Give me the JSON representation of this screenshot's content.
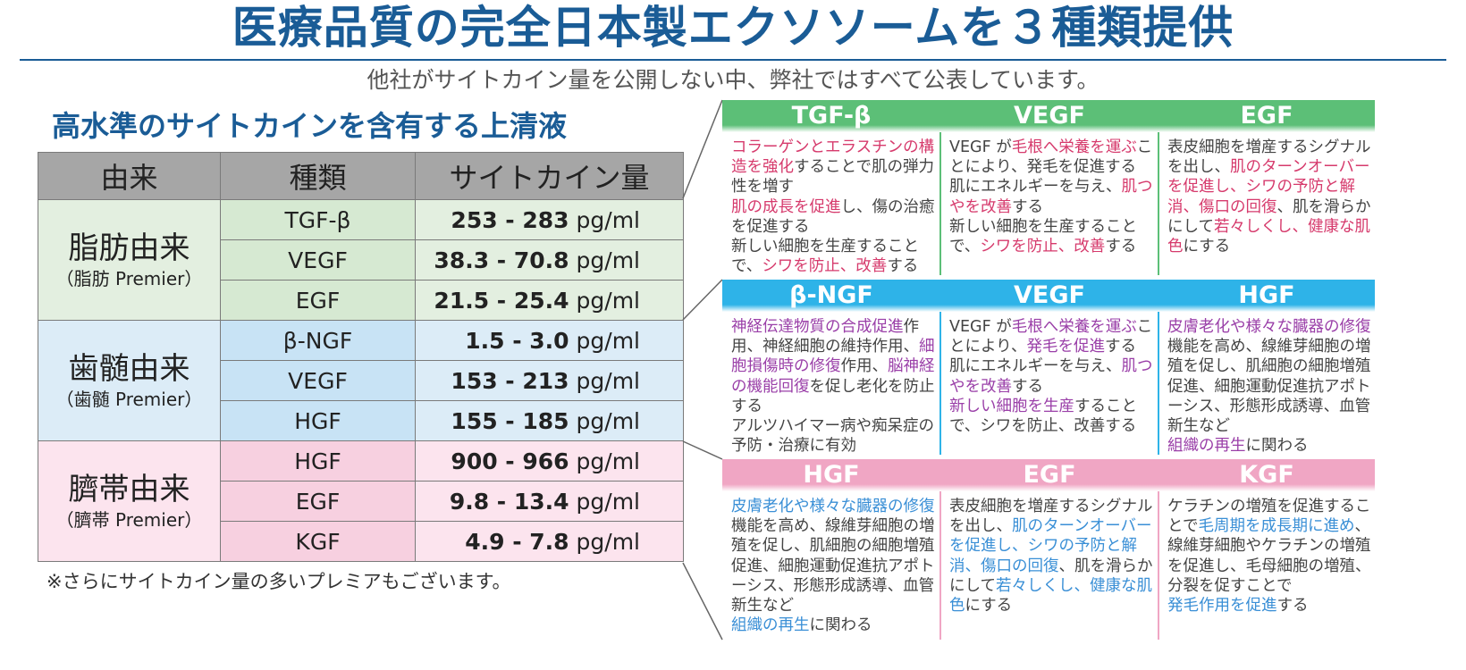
{
  "title": "医療品質の完全日本製エクソソームを３種類提供",
  "subtitle": "他社がサイトカイン量を公開しない中、弊社ではすべて公表しています。",
  "section_heading": "高水準のサイトカインを含有する上清液",
  "table": {
    "headers": [
      "由来",
      "種類",
      "サイトカイン量"
    ],
    "unit": "pg/ml",
    "groups": [
      {
        "name": "脂肪由来",
        "sub": "（脂肪 Premier）",
        "rows": [
          {
            "type": "TGF-β",
            "amount": "253 - 283"
          },
          {
            "type": "VEGF",
            "amount": "38.3 - 70.8"
          },
          {
            "type": "EGF",
            "amount": "21.5 - 25.4"
          }
        ]
      },
      {
        "name": "歯髄由来",
        "sub": "（歯髄 Premier）",
        "rows": [
          {
            "type": "β-NGF",
            "amount": "1.5 - 3.0"
          },
          {
            "type": "VEGF",
            "amount": "153 - 213"
          },
          {
            "type": "HGF",
            "amount": "155 - 185"
          }
        ]
      },
      {
        "name": "臍帯由来",
        "sub": "（臍帯 Premier）",
        "rows": [
          {
            "type": "HGF",
            "amount": "900 - 966"
          },
          {
            "type": "EGF",
            "amount": "9.8 - 13.4"
          },
          {
            "type": "KGF",
            "amount": "4.9 - 7.8"
          }
        ]
      }
    ]
  },
  "footnote": "※さらにサイトカイン量の多いプレミアもございます。",
  "colors": {
    "title_blue": "#1a5c96",
    "green_header": "#5cbf77",
    "blue_header": "#2eb3e8",
    "pink_header": "#f0a6c4",
    "red_highlight": "#d63a6c",
    "purple_highlight": "#9a3fa8",
    "blue_highlight": "#3a8fd6"
  },
  "panels": [
    {
      "theme": "green",
      "highlight": "red",
      "cards": [
        {
          "title": "TGF-β",
          "segments": [
            {
              "t": "コラーゲンとエラスチンの構造を強化",
              "h": true
            },
            {
              "t": "することで肌の弾力性を増す",
              "h": false
            },
            {
              "t": "\n",
              "h": false
            },
            {
              "t": "肌の成長を促進",
              "h": true
            },
            {
              "t": "し、傷の治癒を促進する",
              "h": false
            },
            {
              "t": "\n",
              "h": false
            },
            {
              "t": "新しい細胞を生産することで、",
              "h": false
            },
            {
              "t": "シワを防止、改善",
              "h": true
            },
            {
              "t": "する",
              "h": false
            }
          ]
        },
        {
          "title": "VEGF",
          "segments": [
            {
              "t": "VEGF が",
              "h": false
            },
            {
              "t": "毛根へ栄養を運ぶ",
              "h": true
            },
            {
              "t": "ことにより、発毛を促進する",
              "h": false
            },
            {
              "t": "\n",
              "h": false
            },
            {
              "t": "肌にエネルギーを与え、",
              "h": false
            },
            {
              "t": "肌つやを改善",
              "h": true
            },
            {
              "t": "する",
              "h": false
            },
            {
              "t": "\n",
              "h": false
            },
            {
              "t": "新しい細胞を生産することで、",
              "h": false
            },
            {
              "t": "シワを防止、改善",
              "h": true
            },
            {
              "t": "する",
              "h": false
            }
          ]
        },
        {
          "title": "EGF",
          "segments": [
            {
              "t": "表皮細胞を増産するシグナルを出し、",
              "h": false
            },
            {
              "t": "肌のターンオーバーを促進し、シワの予防と解消、傷口の回復",
              "h": true
            },
            {
              "t": "、肌を滑らかにして",
              "h": false
            },
            {
              "t": "若々しくし、健康な肌色",
              "h": true
            },
            {
              "t": "にする",
              "h": false
            }
          ]
        }
      ]
    },
    {
      "theme": "blue",
      "highlight": "purple",
      "cards": [
        {
          "title": "β-NGF",
          "segments": [
            {
              "t": "神経伝達物質の合成促進",
              "h": true
            },
            {
              "t": "作用、神経細胞の維持作用、",
              "h": false
            },
            {
              "t": "細胞損傷時の修復",
              "h": true
            },
            {
              "t": "作用、",
              "h": false
            },
            {
              "t": "脳神経の機能回復",
              "h": true
            },
            {
              "t": "を促し老化を防止する",
              "h": false
            },
            {
              "t": "\n",
              "h": false
            },
            {
              "t": "アルツハイマー病や痴呆症の予防・治療に有効",
              "h": false
            }
          ]
        },
        {
          "title": "VEGF",
          "segments": [
            {
              "t": "VEGF が",
              "h": false
            },
            {
              "t": "毛根へ栄養を運ぶ",
              "h": true
            },
            {
              "t": "ことにより、",
              "h": false
            },
            {
              "t": "発毛を促進",
              "h": true
            },
            {
              "t": "する",
              "h": false
            },
            {
              "t": "\n",
              "h": false
            },
            {
              "t": "肌にエネルギーを与え、",
              "h": false
            },
            {
              "t": "肌つやを改善",
              "h": true
            },
            {
              "t": "する",
              "h": false
            },
            {
              "t": "\n",
              "h": false
            },
            {
              "t": "新しい細胞を生産",
              "h": true
            },
            {
              "t": "することで、シワを防止、改善する",
              "h": false
            }
          ]
        },
        {
          "title": "HGF",
          "segments": [
            {
              "t": "皮膚老化や様々な臓器の修復",
              "h": true
            },
            {
              "t": "機能を高め、線維芽細胞の増殖を促し、肌細胞の細胞増殖促進、細胞運動促進抗アポトーシス、形態形成誘導、血管新生など",
              "h": false
            },
            {
              "t": "\n",
              "h": false
            },
            {
              "t": "組織の再生",
              "h": true
            },
            {
              "t": "に関わる",
              "h": false
            }
          ]
        }
      ]
    },
    {
      "theme": "pink",
      "highlight": "blue",
      "cards": [
        {
          "title": "HGF",
          "segments": [
            {
              "t": "皮膚老化や様々な臓器の修復",
              "h": true
            },
            {
              "t": "機能を高め、線維芽細胞の増殖を促し、肌細胞の細胞増殖促進、細胞運動促進抗アポトーシス、形態形成誘導、血管新生など",
              "h": false
            },
            {
              "t": "\n",
              "h": false
            },
            {
              "t": "組織の再生",
              "h": true
            },
            {
              "t": "に関わる",
              "h": false
            }
          ]
        },
        {
          "title": "EGF",
          "segments": [
            {
              "t": "表皮細胞を増産するシグナルを出し、",
              "h": false
            },
            {
              "t": "肌のターンオーバーを促進し、シワの予防と解消、傷口の回復",
              "h": true
            },
            {
              "t": "、肌を滑らかにして",
              "h": false
            },
            {
              "t": "若々しくし、健康な肌色",
              "h": true
            },
            {
              "t": "にする",
              "h": false
            }
          ]
        },
        {
          "title": "KGF",
          "segments": [
            {
              "t": "ケラチンの増殖を促進することで",
              "h": false
            },
            {
              "t": "毛周期を成長期に進め",
              "h": true
            },
            {
              "t": "、線維芽細胞やケラチンの増殖を促進し、毛母細胞の増殖、分裂を促すことで",
              "h": false
            },
            {
              "t": "\n",
              "h": false
            },
            {
              "t": "発毛作用を促進",
              "h": true
            },
            {
              "t": "する",
              "h": false
            }
          ]
        }
      ]
    }
  ]
}
